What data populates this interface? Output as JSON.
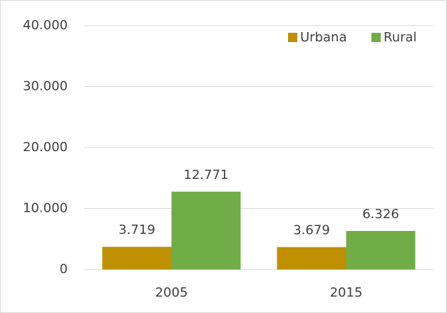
{
  "chart_data": {
    "type": "bar",
    "categories": [
      "2005",
      "2015"
    ],
    "series": [
      {
        "name": "Urbana",
        "color": "#bf9000",
        "values": [
          3719,
          3679
        ],
        "value_labels": [
          "3.719",
          "3.679"
        ]
      },
      {
        "name": "Rural",
        "color": "#70ad47",
        "values": [
          12771,
          6326
        ],
        "value_labels": [
          "12.771",
          "6.326"
        ]
      }
    ],
    "ylim": [
      0,
      40000
    ],
    "yticks": [
      0,
      {
        "value": 10000,
        "label": "10.000"
      },
      {
        "value": 20000,
        "label": "20.000"
      },
      {
        "value": 30000,
        "label": "30.000"
      },
      {
        "value": 40000,
        "label": "40.000"
      }
    ],
    "grid": true,
    "legend": "top-right"
  }
}
